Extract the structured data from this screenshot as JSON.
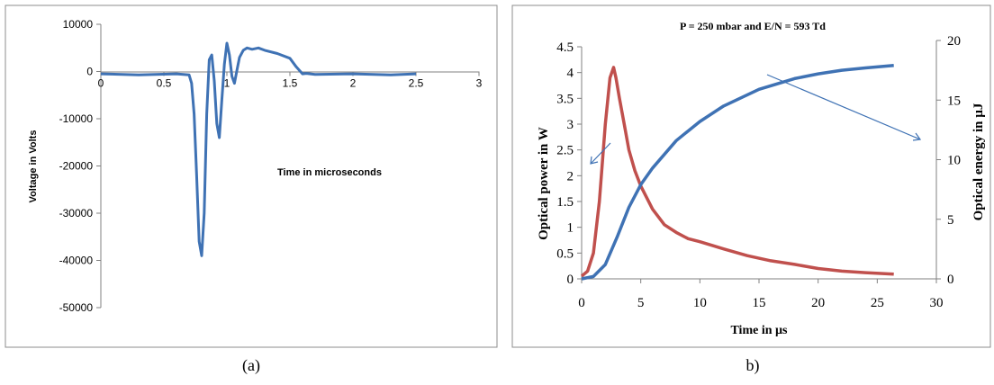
{
  "chart_data": [
    {
      "type": "line",
      "panel_caption": "(a)",
      "title": "",
      "xlabel": "Time in microseconds",
      "ylabel": "Voltage in Volts",
      "xlim": [
        0,
        3
      ],
      "ylim": [
        -50000,
        10000
      ],
      "xticks": [
        0,
        0.5,
        1,
        1.5,
        2,
        2.5,
        3
      ],
      "xtick_labels": [
        "0",
        "0.5",
        "1",
        "1.5",
        "2",
        "2.5",
        "3"
      ],
      "yticks": [
        10000,
        0,
        -10000,
        -20000,
        -30000,
        -40000,
        -50000
      ],
      "ytick_labels": [
        "10000",
        "0",
        "-10000",
        "-20000",
        "-30000",
        "-40000",
        "-50000"
      ],
      "grid": false,
      "legend": "none",
      "series": [
        {
          "color": "#3f72b4",
          "x": [
            0,
            0.3,
            0.6,
            0.7,
            0.72,
            0.74,
            0.76,
            0.78,
            0.8,
            0.82,
            0.84,
            0.86,
            0.88,
            0.9,
            0.92,
            0.94,
            0.96,
            0.98,
            1.0,
            1.02,
            1.04,
            1.06,
            1.08,
            1.1,
            1.13,
            1.16,
            1.2,
            1.25,
            1.3,
            1.4,
            1.5,
            1.55,
            1.6,
            1.63,
            1.7,
            2.0,
            2.3,
            2.5
          ],
          "y": [
            -500,
            -700,
            -500,
            -700,
            -2500,
            -9000,
            -22000,
            -36000,
            -39000,
            -30000,
            -9000,
            2500,
            3500,
            -2000,
            -11000,
            -14000,
            -6000,
            1500,
            6000,
            3500,
            -1000,
            -2500,
            300,
            3000,
            4500,
            5000,
            4700,
            5000,
            4500,
            3800,
            2800,
            1000,
            -500,
            -400,
            -600,
            -500,
            -700,
            -500
          ]
        }
      ]
    },
    {
      "type": "line",
      "panel_caption": "b)",
      "title": "P = 250 mbar and E/N = 593 Td",
      "xlabel": "Time in µs",
      "ylabel": "Optical power in W",
      "y2label": "Optical energy in µJ",
      "xlim": [
        0,
        30
      ],
      "ylim": [
        0,
        4.5
      ],
      "y2lim": [
        0,
        20
      ],
      "xticks": [
        0,
        5,
        10,
        15,
        20,
        25,
        30
      ],
      "xtick_labels": [
        "0",
        "5",
        "10",
        "15",
        "20",
        "25",
        "30"
      ],
      "yticks": [
        0,
        0.5,
        1,
        1.5,
        2,
        2.5,
        3,
        3.5,
        4,
        4.5
      ],
      "ytick_labels": [
        "0",
        "0.5",
        "1",
        "1.5",
        "2",
        "2.5",
        "3",
        "3.5",
        "4",
        "4.5"
      ],
      "y2ticks": [
        0,
        5,
        10,
        15,
        20
      ],
      "y2tick_labels": [
        "0",
        "5",
        "10",
        "15",
        "20"
      ],
      "grid": false,
      "legend": "none",
      "series": [
        {
          "axis": "left",
          "color": "#c0504d",
          "x": [
            0,
            0.5,
            1.0,
            1.5,
            2.0,
            2.4,
            2.7,
            2.9,
            3.2,
            3.6,
            4.0,
            4.5,
            5.0,
            6.0,
            7.0,
            8.0,
            9.0,
            10.0,
            11.0,
            12.0,
            14.0,
            16.0,
            18.0,
            20.0,
            22.0,
            24.0,
            26.4
          ],
          "y": [
            0.05,
            0.15,
            0.5,
            1.5,
            3.0,
            3.9,
            4.1,
            3.9,
            3.5,
            3.0,
            2.5,
            2.1,
            1.8,
            1.35,
            1.05,
            0.9,
            0.78,
            0.72,
            0.65,
            0.58,
            0.45,
            0.35,
            0.28,
            0.2,
            0.15,
            0.12,
            0.09
          ]
        },
        {
          "axis": "right",
          "color": "#3f72b4",
          "x": [
            0,
            1.0,
            2.0,
            3.0,
            4.0,
            5.0,
            6.0,
            8.0,
            10.0,
            12.0,
            15.0,
            18.0,
            20.0,
            22.0,
            24.0,
            26.4
          ],
          "y": [
            0,
            0.2,
            1.2,
            3.5,
            6.0,
            7.9,
            9.3,
            11.6,
            13.2,
            14.5,
            15.9,
            16.8,
            17.2,
            17.5,
            17.7,
            17.9
          ]
        }
      ]
    }
  ]
}
